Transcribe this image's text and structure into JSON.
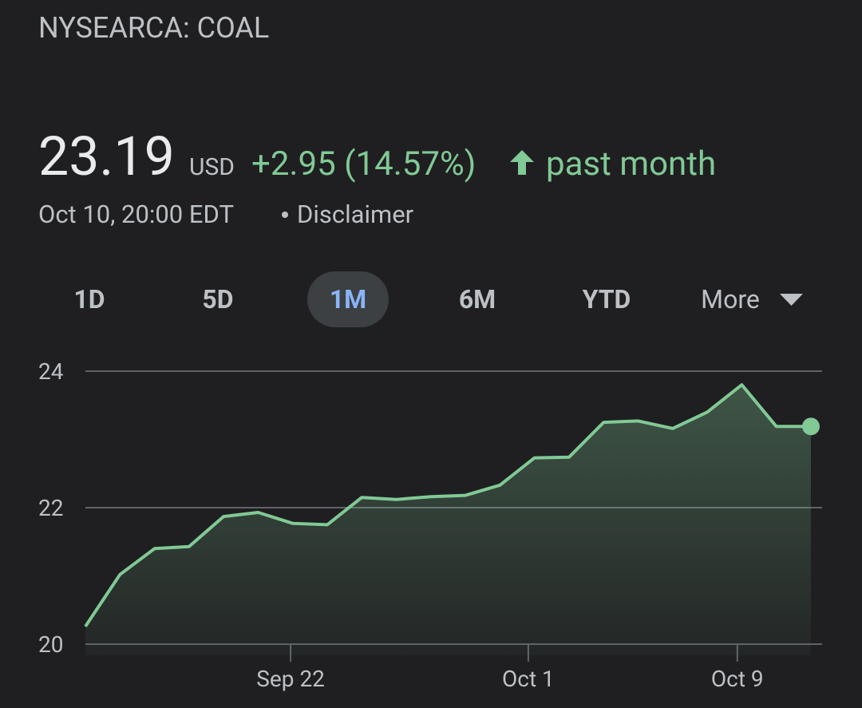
{
  "quote": {
    "ticker": "NYSEARCA: COAL",
    "price": "23.19",
    "currency": "USD",
    "change": "+2.95 (14.57%)",
    "period": "past month",
    "timestamp": "Oct 10, 20:00 EDT",
    "disclaimer": "Disclaimer"
  },
  "ranges": [
    "1D",
    "5D",
    "1M",
    "6M",
    "YTD",
    "More"
  ],
  "selected_range": "1M",
  "chart_data": {
    "type": "area",
    "categories": [
      null,
      null,
      null,
      null,
      null,
      null,
      null,
      null,
      null,
      null,
      null,
      null,
      null,
      null,
      null,
      null,
      null,
      null,
      null,
      null,
      null,
      null
    ],
    "values": [
      20.26,
      21.02,
      21.4,
      21.43,
      21.87,
      21.93,
      21.77,
      21.75,
      22.15,
      22.12,
      22.16,
      22.18,
      22.33,
      22.73,
      22.74,
      23.25,
      23.27,
      23.16,
      23.4,
      23.8,
      23.19,
      23.19
    ],
    "color": "#81c995",
    "xlim": [
      0,
      21
    ],
    "xticks": [
      {
        "value": 5.94,
        "label": "Sep 22"
      },
      {
        "value": 12.82,
        "label": "Oct 1"
      },
      {
        "value": 18.87,
        "label": "Oct 9"
      }
    ],
    "ylim": [
      20,
      24
    ],
    "yticks": [
      20,
      22,
      24
    ],
    "grid": true
  }
}
